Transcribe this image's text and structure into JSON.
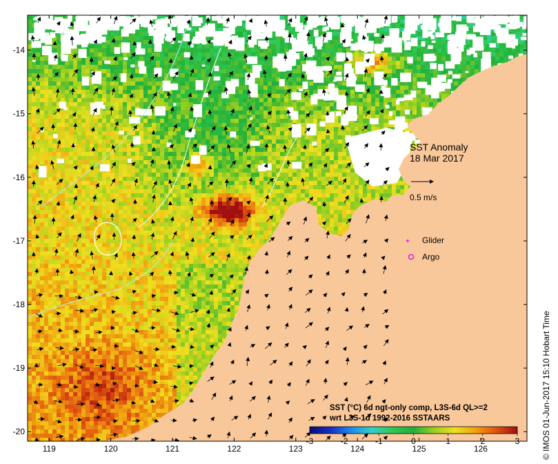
{
  "map": {
    "title_line1": "SST Anomaly",
    "title_line2": "18 Mar 2017",
    "scale_label": "0.5 m/s",
    "legend": {
      "glider_label": "Glider",
      "argo_label": "Argo",
      "glider_color": "#e020e0",
      "argo_color": "#e020e0"
    },
    "colorbar_caption_line1": "SST (°C) 6d ngt-only comp, L3S-6d QL>=2",
    "colorbar_caption_line2": "wrt L3S-1d 1992-2016 SSTAARS",
    "credit": "© IMOS 01-Jun-2017 15:10 Hobart Time",
    "land_color": "#f9c89a"
  },
  "axes": {
    "lon_ticks": [
      "119",
      "120",
      "121",
      "122",
      "123",
      "124",
      "125",
      "126"
    ],
    "lat_ticks": [
      "-14",
      "-15",
      "-16",
      "-17",
      "-18",
      "-19",
      "-20"
    ],
    "lon_range": [
      118.65,
      126.75
    ],
    "lat_range": [
      -20.15,
      -13.45
    ]
  },
  "colorbar": {
    "ticks": [
      "-3",
      "-2",
      "-1",
      "0",
      "1",
      "2",
      "3"
    ],
    "range": [
      -3,
      3
    ],
    "colors": [
      "#0a0a78",
      "#1430c8",
      "#1a8cf0",
      "#30d0c8",
      "#30c850",
      "#22b03a",
      "#9ad020",
      "#f0e020",
      "#f0a010",
      "#e05010",
      "#a01010"
    ]
  }
}
